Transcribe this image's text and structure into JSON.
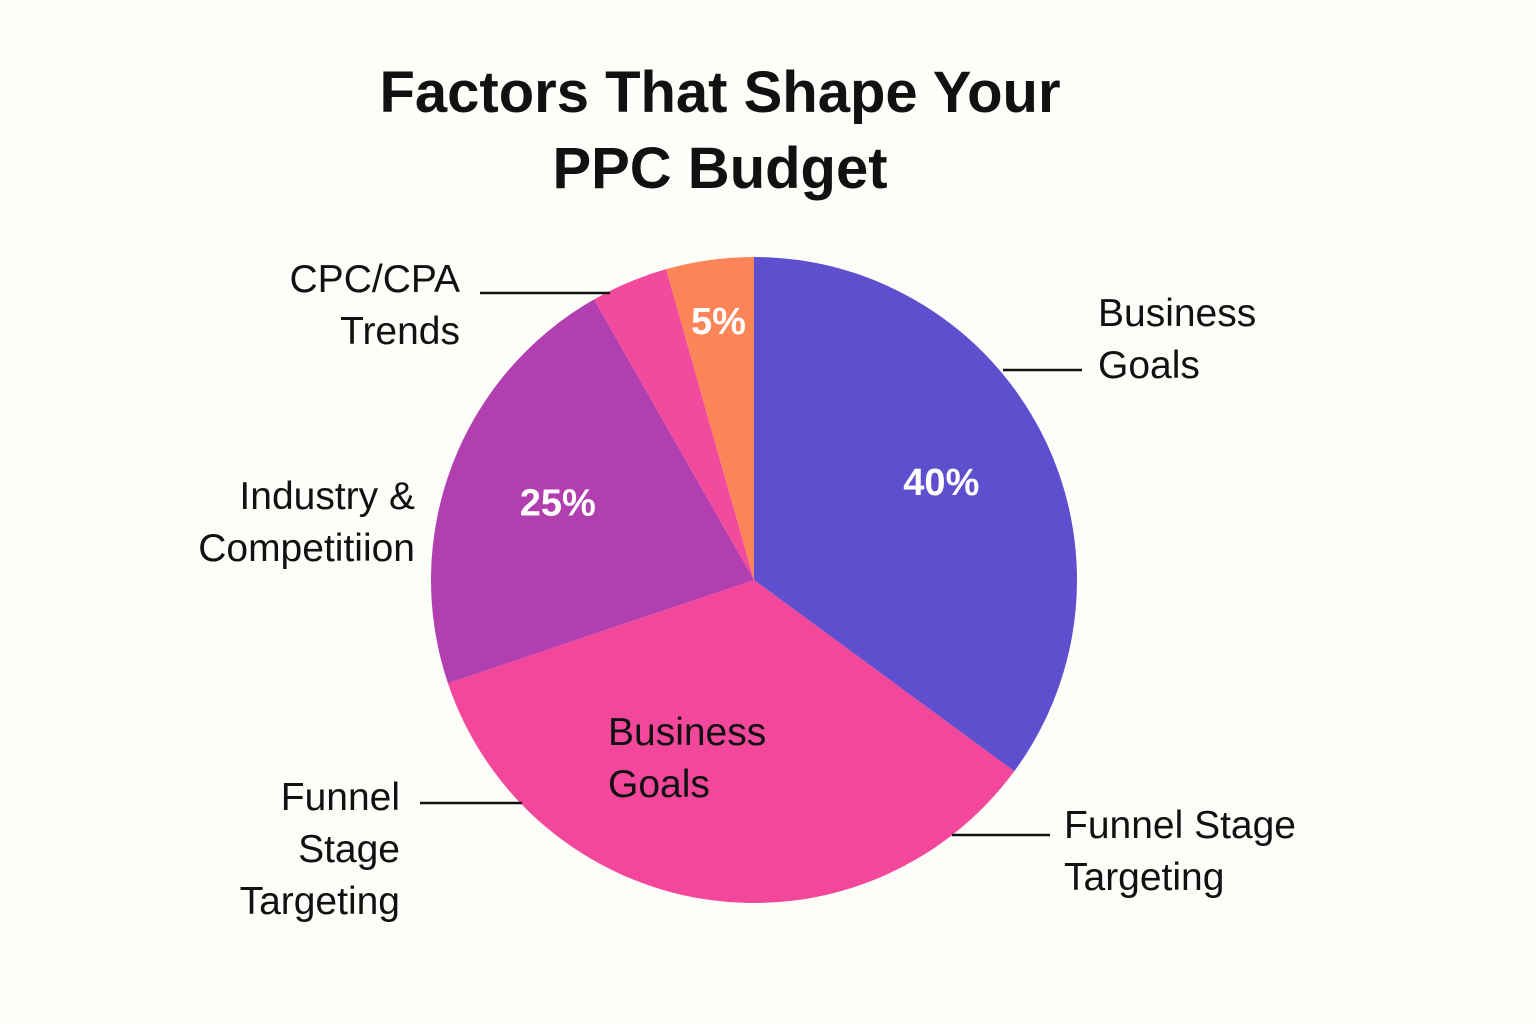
{
  "chart_data": {
    "type": "pie",
    "title": "Factors That Shape Your PPC Budget",
    "categories": [
      "Business Goals",
      "Business Goals",
      "Industry & Competitiion",
      "CPC/CPA Trends",
      null
    ],
    "values": [
      40,
      39.6,
      25,
      4.4,
      5
    ],
    "value_labels": [
      "40%",
      null,
      "25%",
      null,
      "5%"
    ],
    "colors": [
      "#5f4fcf",
      "#f2479a",
      "#b23fb0",
      "#f24a9c",
      "#fb8558"
    ],
    "annotations": [
      "Funnel Stage Targeting",
      "Funnel Stage Targeting"
    ]
  }
}
